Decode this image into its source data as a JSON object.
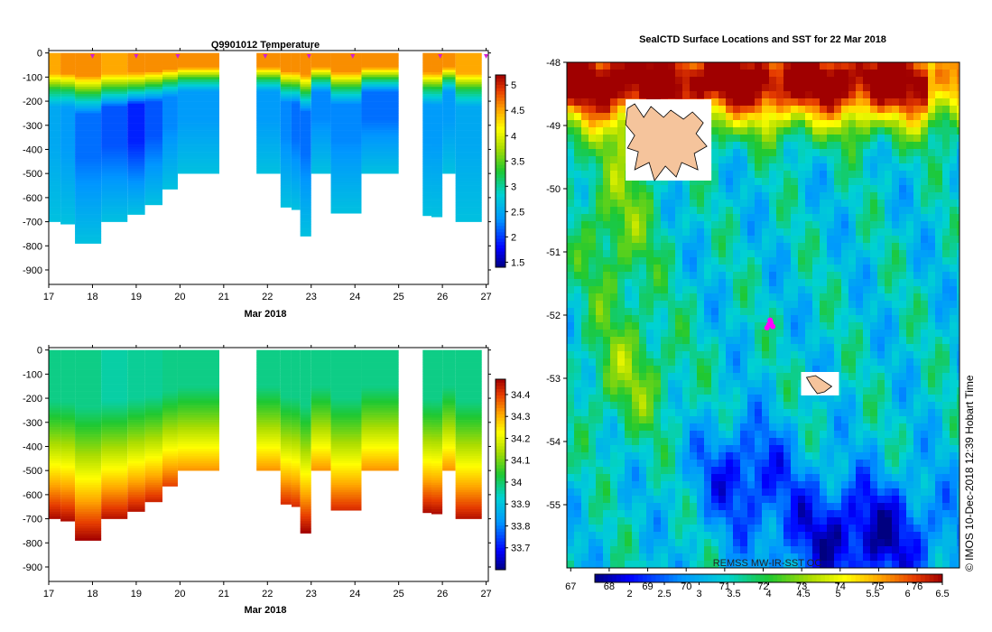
{
  "chart_data": [
    {
      "type": "heatmap",
      "title": "Q9901012  Temperature",
      "xlabel": "Mar 2018",
      "ylabel": "",
      "xlim": [
        17,
        27.05
      ],
      "ylim": [
        -960,
        10
      ],
      "x_ticks": [
        17,
        18,
        19,
        20,
        21,
        22,
        23,
        24,
        25,
        26,
        27
      ],
      "y_ticks": [
        0,
        -100,
        -200,
        -300,
        -400,
        -500,
        -600,
        -700,
        -800,
        -900
      ],
      "colorbar": {
        "min": 1.4,
        "max": 5.2,
        "ticks": [
          1.5,
          2,
          2.5,
          3,
          3.5,
          4,
          4.5,
          5
        ]
      },
      "profile_markers_x": [
        18.0,
        19.0,
        19.95,
        21.95,
        22.95,
        23.95,
        25.95,
        27.0
      ],
      "profiles": [
        {
          "x0": 17.0,
          "x1": 17.27,
          "bottom": -700,
          "surface": 4.5,
          "deep": 2.6
        },
        {
          "x0": 17.27,
          "x1": 17.6,
          "bottom": -710,
          "surface": 4.6,
          "deep": 2.5
        },
        {
          "x0": 17.6,
          "x1": 18.2,
          "bottom": -790,
          "surface": 4.6,
          "deep": 2.3
        },
        {
          "x0": 18.2,
          "x1": 18.8,
          "bottom": -700,
          "surface": 4.5,
          "deep": 2.2
        },
        {
          "x0": 18.8,
          "x1": 19.2,
          "bottom": -670,
          "surface": 4.6,
          "deep": 2.0
        },
        {
          "x0": 19.2,
          "x1": 19.6,
          "bottom": -630,
          "surface": 4.6,
          "deep": 2.2
        },
        {
          "x0": 19.6,
          "x1": 19.95,
          "bottom": -565,
          "surface": 4.6,
          "deep": 2.4
        },
        {
          "x0": 19.95,
          "x1": 20.9,
          "bottom": -500,
          "surface": 4.6,
          "deep": 2.5
        },
        {
          "x0": 21.75,
          "x1": 22.3,
          "bottom": -500,
          "surface": 4.6,
          "deep": 2.5
        },
        {
          "x0": 22.3,
          "x1": 22.55,
          "bottom": -640,
          "surface": 4.6,
          "deep": 2.4
        },
        {
          "x0": 22.55,
          "x1": 22.75,
          "bottom": -650,
          "surface": 4.6,
          "deep": 2.3
        },
        {
          "x0": 22.75,
          "x1": 23.0,
          "bottom": -760,
          "surface": 4.6,
          "deep": 2.3
        },
        {
          "x0": 23.0,
          "x1": 23.45,
          "bottom": -500,
          "surface": 4.6,
          "deep": 2.4
        },
        {
          "x0": 23.45,
          "x1": 24.15,
          "bottom": -665,
          "surface": 4.6,
          "deep": 2.4
        },
        {
          "x0": 24.15,
          "x1": 25.0,
          "bottom": -500,
          "surface": 4.6,
          "deep": 2.3
        },
        {
          "x0": 25.55,
          "x1": 25.75,
          "bottom": -675,
          "surface": 4.6,
          "deep": 2.5
        },
        {
          "x0": 25.75,
          "x1": 26.0,
          "bottom": -680,
          "surface": 4.6,
          "deep": 2.5
        },
        {
          "x0": 26.0,
          "x1": 26.3,
          "bottom": -500,
          "surface": 4.6,
          "deep": 2.5
        },
        {
          "x0": 26.3,
          "x1": 26.9,
          "bottom": -700,
          "surface": 4.5,
          "deep": 2.6
        }
      ]
    },
    {
      "type": "heatmap",
      "title": "",
      "xlabel": "Mar 2018",
      "ylabel": "",
      "xlim": [
        17,
        27.05
      ],
      "ylim": [
        -960,
        10
      ],
      "x_ticks": [
        17,
        18,
        19,
        20,
        21,
        22,
        23,
        24,
        25,
        26,
        27
      ],
      "y_ticks": [
        0,
        -100,
        -200,
        -300,
        -400,
        -500,
        -600,
        -700,
        -800,
        -900
      ],
      "colorbar": {
        "min": 33.6,
        "max": 34.47,
        "ticks": [
          33.7,
          33.8,
          33.9,
          34,
          34.1,
          34.2,
          34.3,
          34.4
        ]
      },
      "profiles": [
        {
          "x0": 17.0,
          "x1": 17.27,
          "bottom": -700,
          "surface": 33.98,
          "deep": 34.46
        },
        {
          "x0": 17.27,
          "x1": 17.6,
          "bottom": -710,
          "surface": 33.98,
          "deep": 34.46
        },
        {
          "x0": 17.6,
          "x1": 18.2,
          "bottom": -790,
          "surface": 33.98,
          "deep": 34.47
        },
        {
          "x0": 18.2,
          "x1": 18.8,
          "bottom": -700,
          "surface": 33.96,
          "deep": 34.45
        },
        {
          "x0": 18.8,
          "x1": 19.2,
          "bottom": -670,
          "surface": 33.97,
          "deep": 34.45
        },
        {
          "x0": 19.2,
          "x1": 19.6,
          "bottom": -630,
          "surface": 33.97,
          "deep": 34.43
        },
        {
          "x0": 19.6,
          "x1": 19.95,
          "bottom": -565,
          "surface": 33.98,
          "deep": 34.4
        },
        {
          "x0": 19.95,
          "x1": 20.9,
          "bottom": -500,
          "surface": 33.98,
          "deep": 34.33
        },
        {
          "x0": 21.75,
          "x1": 22.3,
          "bottom": -500,
          "surface": 33.98,
          "deep": 34.33
        },
        {
          "x0": 22.3,
          "x1": 22.55,
          "bottom": -640,
          "surface": 33.98,
          "deep": 34.42
        },
        {
          "x0": 22.55,
          "x1": 22.75,
          "bottom": -650,
          "surface": 33.98,
          "deep": 34.42
        },
        {
          "x0": 22.75,
          "x1": 23.0,
          "bottom": -760,
          "surface": 33.98,
          "deep": 34.47
        },
        {
          "x0": 23.0,
          "x1": 23.45,
          "bottom": -500,
          "surface": 33.98,
          "deep": 34.33
        },
        {
          "x0": 23.45,
          "x1": 24.15,
          "bottom": -665,
          "surface": 33.98,
          "deep": 34.42
        },
        {
          "x0": 24.15,
          "x1": 25.0,
          "bottom": -500,
          "surface": 33.98,
          "deep": 34.33
        },
        {
          "x0": 25.55,
          "x1": 25.75,
          "bottom": -675,
          "surface": 33.98,
          "deep": 34.46
        },
        {
          "x0": 25.75,
          "x1": 26.0,
          "bottom": -680,
          "surface": 33.98,
          "deep": 34.46
        },
        {
          "x0": 26.0,
          "x1": 26.3,
          "bottom": -500,
          "surface": 33.98,
          "deep": 34.33
        },
        {
          "x0": 26.3,
          "x1": 26.9,
          "bottom": -700,
          "surface": 33.98,
          "deep": 34.45
        }
      ]
    },
    {
      "type": "heatmap",
      "title": "SealCTD Surface Locations and SST for 22 Mar 2018",
      "xlim": [
        66.9,
        77.1
      ],
      "ylim": [
        -56.0,
        -48.0
      ],
      "x_ticks": [
        67,
        68,
        69,
        70,
        71,
        72,
        73,
        74,
        75,
        76
      ],
      "y_ticks": [
        -48,
        -49,
        -50,
        -51,
        -52,
        -53,
        -54,
        -55
      ],
      "source_label": "REMSS MW-IR-SST OC",
      "credit": "© IMOS 10-Dec-2018 12:39 Hobart Time",
      "colorbar": {
        "min": 1.5,
        "max": 6.5,
        "ticks": [
          2,
          2.5,
          3,
          3.5,
          4,
          4.5,
          5,
          5.5,
          6,
          6.5
        ]
      },
      "islands": [
        {
          "name": "",
          "lon": 69.6,
          "lat": -49.3
        },
        {
          "name": "",
          "lon": 73.5,
          "lat": -53.1
        }
      ],
      "seal_locations": [
        {
          "lon": 72.15,
          "lat": -52.15
        },
        {
          "lon": 72.2,
          "lat": -52.12
        },
        {
          "lon": 72.1,
          "lat": -52.2
        },
        {
          "lon": 72.25,
          "lat": -52.18
        },
        {
          "lon": 72.18,
          "lat": -52.08
        }
      ]
    }
  ]
}
